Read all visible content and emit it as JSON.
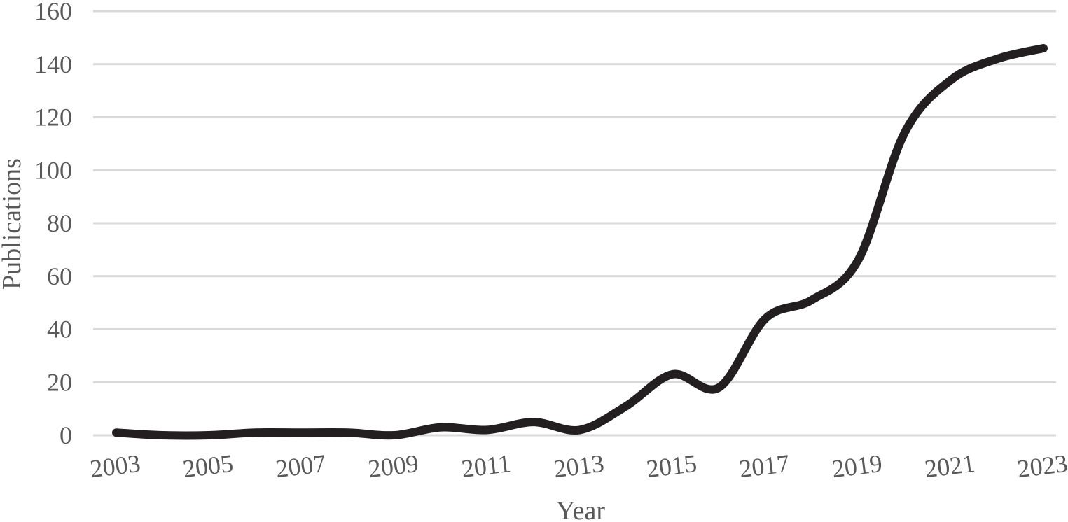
{
  "chart_data": {
    "type": "line",
    "title": "",
    "xlabel": "Year",
    "ylabel": "Publications",
    "x": [
      2003,
      2004,
      2005,
      2006,
      2007,
      2008,
      2009,
      2010,
      2011,
      2012,
      2013,
      2014,
      2015,
      2016,
      2017,
      2018,
      2019,
      2020,
      2021,
      2022,
      2023
    ],
    "x_tick_labels": [
      "2003",
      "2005",
      "2007",
      "2009",
      "2011",
      "2013",
      "2015",
      "2017",
      "2019",
      "2021",
      "2023"
    ],
    "y_ticks": [
      0,
      20,
      40,
      60,
      80,
      100,
      120,
      140,
      160
    ],
    "ylim": [
      0,
      160
    ],
    "series": [
      {
        "values": [
          1,
          0,
          0,
          1,
          1,
          1,
          0,
          3,
          2,
          5,
          2,
          11,
          23,
          18,
          44,
          51,
          66,
          114,
          134,
          142,
          146
        ],
        "color": "#231f20"
      }
    ],
    "grid": true,
    "smooth": true,
    "legend": "none"
  }
}
